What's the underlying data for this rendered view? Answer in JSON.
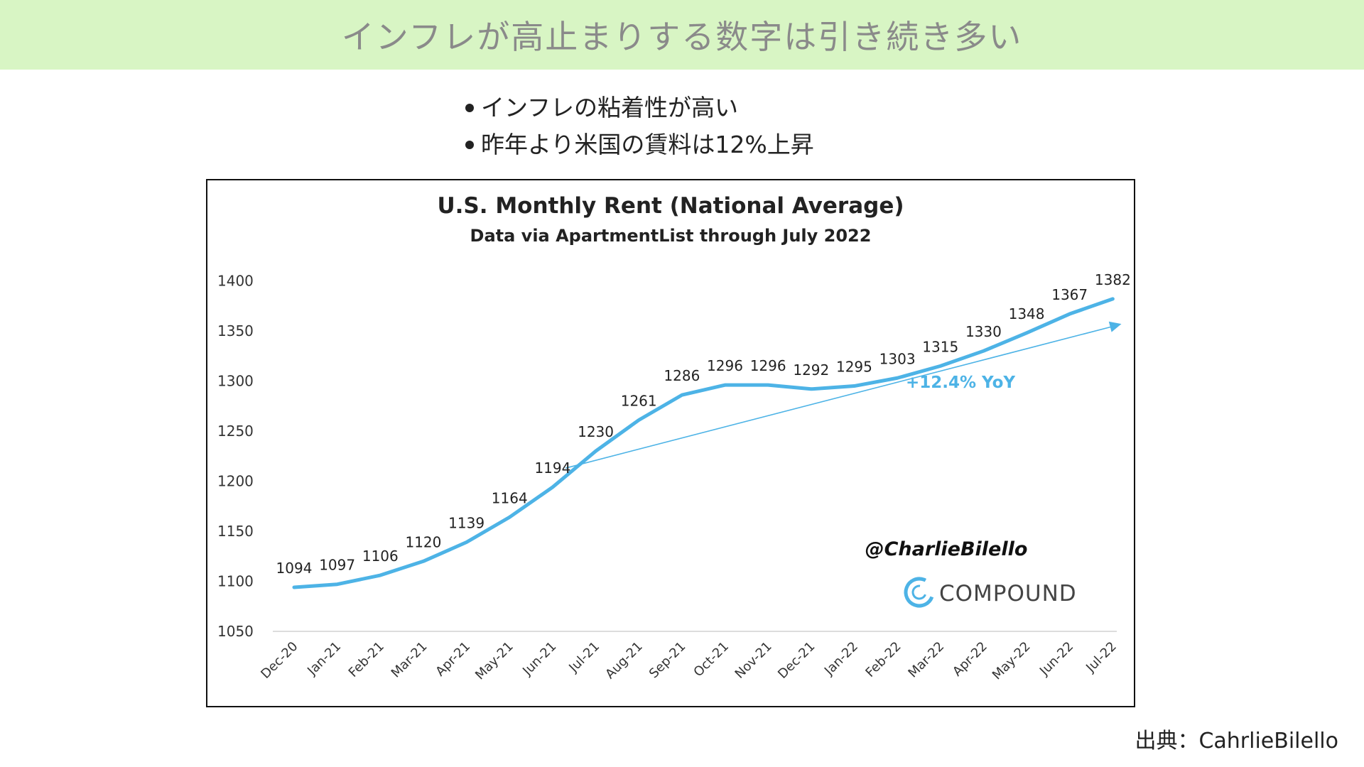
{
  "banner": {
    "title": "インフレが高止まりする数字は引き続き多い"
  },
  "bullets": [
    {
      "text": "インフレの粘着性が高い"
    },
    {
      "text": "昨年より米国の賃料は12%上昇"
    }
  ],
  "source": {
    "text": "出典：CahrlieBilello"
  },
  "chart_data": {
    "type": "line",
    "title": "U.S. Monthly Rent (National Average)",
    "subtitle": "Data via ApartmentList through July 2022",
    "categories": [
      "Dec-20",
      "Jan-21",
      "Feb-21",
      "Mar-21",
      "Apr-21",
      "May-21",
      "Jun-21",
      "Jul-21",
      "Aug-21",
      "Sep-21",
      "Oct-21",
      "Nov-21",
      "Dec-21",
      "Jan-22",
      "Feb-22",
      "Mar-22",
      "Apr-22",
      "May-22",
      "Jun-22",
      "Jul-22"
    ],
    "values": [
      1094,
      1097,
      1106,
      1120,
      1139,
      1164,
      1194,
      1230,
      1261,
      1286,
      1296,
      1296,
      1292,
      1295,
      1303,
      1315,
      1330,
      1348,
      1367,
      1382
    ],
    "yticks": [
      1050,
      1100,
      1150,
      1200,
      1250,
      1300,
      1350,
      1400
    ],
    "ylim": [
      1050,
      1400
    ],
    "annotation": "+12.4% YoY",
    "trend": {
      "start_x": 6.3,
      "start_y": 1213,
      "end_x": 19.2,
      "end_y": 1357
    },
    "watermark": "@CharlieBilello",
    "brand": "COMPOUND",
    "series_color": "#4db3e6",
    "grid": false
  }
}
